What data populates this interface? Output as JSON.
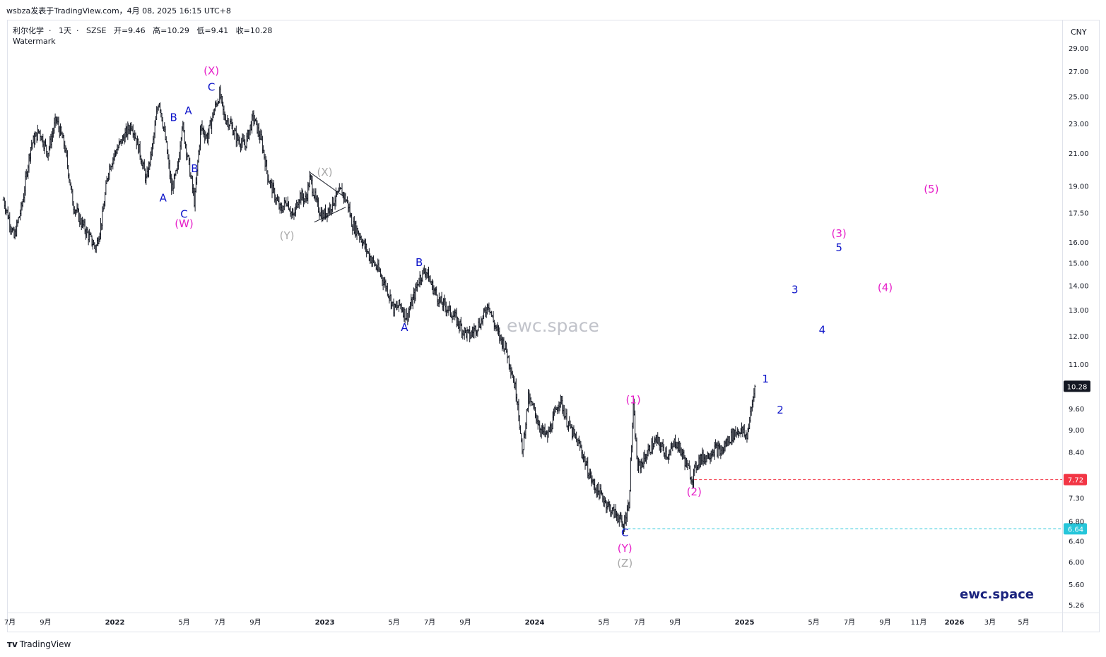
{
  "header": {
    "published": "wsbza发表于TradingView.com，4月 08, 2025 16:15 UTC+8"
  },
  "symbol": {
    "name": "利尔化学",
    "interval": "1天",
    "exchange": "SZSE",
    "open": "开=9.46",
    "high": "高=10.29",
    "low": "低=9.41",
    "close": "收=10.28"
  },
  "indicators": {
    "watermark_label": "Watermark"
  },
  "watermark_text": "ewc.space",
  "brand_text": "ewc.space",
  "footer": {
    "logo_text": "TradingView"
  },
  "price_scale": {
    "currency": "CNY",
    "ticks": [
      "29.00",
      "27.00",
      "25.00",
      "23.00",
      "21.00",
      "19.00",
      "17.50",
      "16.00",
      "15.00",
      "14.00",
      "13.00",
      "12.00",
      "11.00",
      "9.60",
      "9.00",
      "8.40",
      "7.30",
      "6.80",
      "6.40",
      "6.00",
      "5.60",
      "5.26"
    ]
  },
  "time_scale": {
    "ticks": [
      {
        "label": "7月",
        "t": 0.5,
        "bold": false
      },
      {
        "label": "9月",
        "t": 0.67,
        "bold": false
      },
      {
        "label": "2022",
        "t": 1.0,
        "bold": true
      },
      {
        "label": "5月",
        "t": 1.33,
        "bold": false
      },
      {
        "label": "7月",
        "t": 1.5,
        "bold": false
      },
      {
        "label": "9月",
        "t": 1.67,
        "bold": false
      },
      {
        "label": "2023",
        "t": 2.0,
        "bold": true
      },
      {
        "label": "5月",
        "t": 2.33,
        "bold": false
      },
      {
        "label": "7月",
        "t": 2.5,
        "bold": false
      },
      {
        "label": "9月",
        "t": 2.67,
        "bold": false
      },
      {
        "label": "2024",
        "t": 3.0,
        "bold": true
      },
      {
        "label": "5月",
        "t": 3.33,
        "bold": false
      },
      {
        "label": "7月",
        "t": 3.5,
        "bold": false
      },
      {
        "label": "9月",
        "t": 3.67,
        "bold": false
      },
      {
        "label": "2025",
        "t": 4.0,
        "bold": true
      },
      {
        "label": "5月",
        "t": 4.33,
        "bold": false
      },
      {
        "label": "7月",
        "t": 4.5,
        "bold": false
      },
      {
        "label": "9月",
        "t": 4.67,
        "bold": false
      },
      {
        "label": "11月",
        "t": 4.83,
        "bold": false
      },
      {
        "label": "2026",
        "t": 5.0,
        "bold": true
      },
      {
        "label": "3月",
        "t": 5.17,
        "bold": false
      },
      {
        "label": "5月",
        "t": 5.33,
        "bold": false
      }
    ]
  },
  "colors": {
    "candle": "#131722",
    "wave_blue": "#0d14c9",
    "wave_magenta": "#e61ec8",
    "wave_gray": "#a8a8a8",
    "red_level": "#f23645",
    "cyan_level": "#26a69a",
    "current_price_bg": "#131722"
  },
  "chart_data": {
    "type": "ohlc",
    "title": "利尔化学 · 1天 · SZSE",
    "y_scale": "log",
    "ylim": [
      5.26,
      29.0
    ],
    "xlim": [
      0.47,
      5.5
    ],
    "price_path": [
      [
        0.47,
        18.2
      ],
      [
        0.52,
        16.2
      ],
      [
        0.56,
        18.0
      ],
      [
        0.6,
        21.5
      ],
      [
        0.64,
        22.5
      ],
      [
        0.68,
        21.0
      ],
      [
        0.72,
        23.3
      ],
      [
        0.76,
        21.5
      ],
      [
        0.8,
        18.0
      ],
      [
        0.84,
        17.0
      ],
      [
        0.88,
        16.2
      ],
      [
        0.91,
        15.7
      ],
      [
        0.94,
        17.2
      ],
      [
        0.97,
        20.0
      ],
      [
        1.0,
        21.0
      ],
      [
        1.04,
        22.0
      ],
      [
        1.08,
        23.0
      ],
      [
        1.12,
        21.0
      ],
      [
        1.15,
        19.3
      ],
      [
        1.18,
        21.5
      ],
      [
        1.21,
        24.8
      ],
      [
        1.24,
        22.0
      ],
      [
        1.27,
        18.8
      ],
      [
        1.3,
        20.0
      ],
      [
        1.32,
        23.0
      ],
      [
        1.35,
        20.5
      ],
      [
        1.38,
        18.0
      ],
      [
        1.41,
        22.8
      ],
      [
        1.44,
        22.0
      ],
      [
        1.47,
        23.8
      ],
      [
        1.5,
        25.2
      ],
      [
        1.52,
        23.5
      ],
      [
        1.55,
        23.0
      ],
      [
        1.58,
        22.0
      ],
      [
        1.62,
        21.5
      ],
      [
        1.66,
        23.5
      ],
      [
        1.7,
        21.7
      ],
      [
        1.73,
        19.5
      ],
      [
        1.76,
        18.5
      ],
      [
        1.79,
        17.6
      ],
      [
        1.82,
        18.2
      ],
      [
        1.85,
        17.2
      ],
      [
        1.88,
        18.5
      ],
      [
        1.91,
        18.2
      ],
      [
        1.93,
        19.5
      ],
      [
        1.96,
        18.0
      ],
      [
        1.99,
        17.3
      ],
      [
        2.02,
        17.7
      ],
      [
        2.05,
        18.3
      ],
      [
        2.08,
        18.7
      ],
      [
        2.11,
        18.0
      ],
      [
        2.13,
        16.9
      ],
      [
        2.16,
        16.5
      ],
      [
        2.19,
        15.8
      ],
      [
        2.22,
        15.2
      ],
      [
        2.26,
        14.6
      ],
      [
        2.3,
        13.8
      ],
      [
        2.33,
        13.0
      ],
      [
        2.36,
        13.2
      ],
      [
        2.39,
        12.7
      ],
      [
        2.42,
        13.4
      ],
      [
        2.45,
        14.3
      ],
      [
        2.48,
        14.7
      ],
      [
        2.51,
        14.0
      ],
      [
        2.55,
        13.3
      ],
      [
        2.58,
        13.1
      ],
      [
        2.62,
        12.7
      ],
      [
        2.66,
        12.2
      ],
      [
        2.69,
        12.0
      ],
      [
        2.72,
        12.3
      ],
      [
        2.75,
        12.6
      ],
      [
        2.78,
        13.3
      ],
      [
        2.8,
        12.6
      ],
      [
        2.83,
        12.0
      ],
      [
        2.86,
        11.6
      ],
      [
        2.89,
        10.8
      ],
      [
        2.92,
        9.8
      ],
      [
        2.94,
        8.3
      ],
      [
        2.97,
        9.9
      ],
      [
        3.0,
        9.5
      ],
      [
        3.03,
        9.0
      ],
      [
        3.06,
        8.8
      ],
      [
        3.09,
        9.3
      ],
      [
        3.12,
        9.9
      ],
      [
        3.15,
        9.3
      ],
      [
        3.18,
        8.9
      ],
      [
        3.22,
        8.5
      ],
      [
        3.25,
        8.0
      ],
      [
        3.28,
        7.6
      ],
      [
        3.31,
        7.4
      ],
      [
        3.34,
        7.2
      ],
      [
        3.37,
        7.0
      ],
      [
        3.4,
        6.9
      ],
      [
        3.42,
        6.66
      ],
      [
        3.45,
        7.2
      ],
      [
        3.47,
        9.6
      ],
      [
        3.49,
        8.0
      ],
      [
        3.52,
        8.2
      ],
      [
        3.55,
        8.5
      ],
      [
        3.58,
        8.7
      ],
      [
        3.61,
        8.5
      ],
      [
        3.64,
        8.3
      ],
      [
        3.67,
        8.7
      ],
      [
        3.7,
        8.4
      ],
      [
        3.73,
        8.0
      ],
      [
        3.75,
        7.74
      ],
      [
        3.78,
        8.2
      ],
      [
        3.82,
        8.3
      ],
      [
        3.86,
        8.5
      ],
      [
        3.89,
        8.4
      ],
      [
        3.92,
        8.7
      ],
      [
        3.95,
        8.9
      ],
      [
        3.98,
        9.0
      ],
      [
        4.01,
        8.8
      ],
      [
        4.03,
        9.46
      ],
      [
        4.05,
        10.28
      ]
    ],
    "horizontal_levels": [
      {
        "price": 7.72,
        "label": "7.72",
        "style": "dashed",
        "color": "#f23645",
        "from_t": 3.76
      },
      {
        "price": 6.64,
        "label": "6.64",
        "style": "dashed",
        "color": "#26c6da",
        "from_t": 3.42
      }
    ],
    "current_price": "10.28",
    "triangle": [
      [
        1.93,
        19.8
      ],
      [
        2.09,
        18.4
      ],
      [
        1.95,
        17.0
      ],
      [
        2.1,
        17.8
      ]
    ],
    "wave_labels": [
      {
        "text": "A",
        "t": 1.23,
        "price": 18.3,
        "color": "blue"
      },
      {
        "text": "C",
        "t": 1.33,
        "price": 17.4,
        "color": "blue"
      },
      {
        "text": "(W)",
        "t": 1.33,
        "price": 16.9,
        "color": "magenta"
      },
      {
        "text": "B",
        "t": 1.28,
        "price": 23.4,
        "color": "blue"
      },
      {
        "text": "A",
        "t": 1.35,
        "price": 23.9,
        "color": "blue"
      },
      {
        "text": "B",
        "t": 1.38,
        "price": 20.0,
        "color": "blue"
      },
      {
        "text": "C",
        "t": 1.46,
        "price": 25.7,
        "color": "blue"
      },
      {
        "text": "(X)",
        "t": 1.46,
        "price": 27.0,
        "color": "magenta"
      },
      {
        "text": "(X)",
        "t": 2.0,
        "price": 19.8,
        "color": "gray"
      },
      {
        "text": "(Y)",
        "t": 1.82,
        "price": 16.3,
        "color": "gray"
      },
      {
        "text": "B",
        "t": 2.45,
        "price": 15.0,
        "color": "blue"
      },
      {
        "text": "A",
        "t": 2.38,
        "price": 12.3,
        "color": "blue"
      },
      {
        "text": "(1)",
        "t": 3.47,
        "price": 9.85,
        "color": "magenta"
      },
      {
        "text": "(2)",
        "t": 3.76,
        "price": 7.43,
        "color": "magenta"
      },
      {
        "text": "C",
        "t": 3.43,
        "price": 6.55,
        "color": "blue"
      },
      {
        "text": "(Y)",
        "t": 3.43,
        "price": 6.25,
        "color": "magenta"
      },
      {
        "text": "(Z)",
        "t": 3.43,
        "price": 5.97,
        "color": "gray"
      },
      {
        "text": "1",
        "t": 4.1,
        "price": 10.5,
        "color": "blue"
      },
      {
        "text": "2",
        "t": 4.17,
        "price": 9.55,
        "color": "blue"
      },
      {
        "text": "3",
        "t": 4.24,
        "price": 13.8,
        "color": "blue"
      },
      {
        "text": "4",
        "t": 4.37,
        "price": 12.2,
        "color": "blue"
      },
      {
        "text": "5",
        "t": 4.45,
        "price": 15.7,
        "color": "blue"
      },
      {
        "text": "(3)",
        "t": 4.45,
        "price": 16.4,
        "color": "magenta"
      },
      {
        "text": "(4)",
        "t": 4.67,
        "price": 13.9,
        "color": "magenta"
      },
      {
        "text": "(5)",
        "t": 4.89,
        "price": 18.8,
        "color": "magenta"
      }
    ]
  }
}
